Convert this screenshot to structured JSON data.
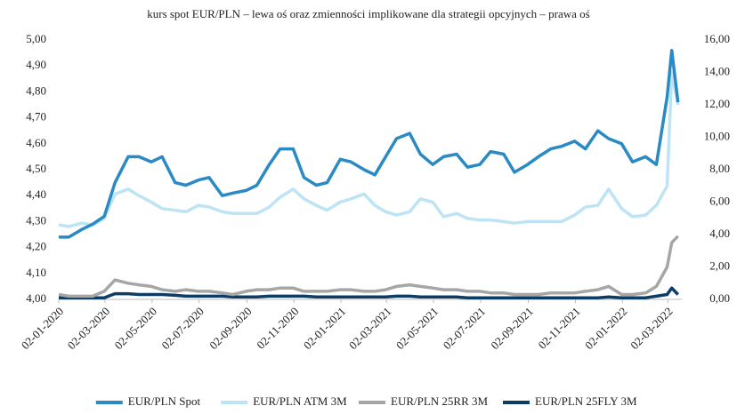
{
  "chart_data": {
    "type": "line",
    "title": "kurs spot EUR/PLN – lewa oś oraz zmienności implikowane dla strategii opcyjnych – prawa oś",
    "x": [
      "2020-01-02",
      "2020-01-15",
      "2020-02-01",
      "2020-02-15",
      "2020-03-01",
      "2020-03-15",
      "2020-04-01",
      "2020-04-15",
      "2020-05-01",
      "2020-05-15",
      "2020-06-01",
      "2020-06-15",
      "2020-07-01",
      "2020-07-15",
      "2020-08-01",
      "2020-08-15",
      "2020-09-01",
      "2020-09-15",
      "2020-10-01",
      "2020-10-15",
      "2020-11-01",
      "2020-11-15",
      "2020-12-01",
      "2020-12-15",
      "2021-01-01",
      "2021-01-15",
      "2021-02-01",
      "2021-02-15",
      "2021-03-01",
      "2021-03-15",
      "2021-04-01",
      "2021-04-15",
      "2021-05-01",
      "2021-05-15",
      "2021-06-01",
      "2021-06-15",
      "2021-07-01",
      "2021-07-15",
      "2021-08-01",
      "2021-08-15",
      "2021-09-01",
      "2021-09-15",
      "2021-10-01",
      "2021-10-15",
      "2021-11-01",
      "2021-11-15",
      "2021-12-01",
      "2021-12-15",
      "2022-01-01",
      "2022-01-15",
      "2022-02-01",
      "2022-02-15",
      "2022-03-01",
      "2022-03-07",
      "2022-03-15"
    ],
    "series": [
      {
        "name": "EUR/PLN Spot",
        "color": "#2a8ac4",
        "axis": "y",
        "values": [
          4.24,
          4.24,
          4.27,
          4.29,
          4.32,
          4.45,
          4.55,
          4.55,
          4.53,
          4.55,
          4.45,
          4.44,
          4.46,
          4.47,
          4.4,
          4.41,
          4.42,
          4.44,
          4.52,
          4.58,
          4.58,
          4.47,
          4.44,
          4.45,
          4.54,
          4.53,
          4.5,
          4.48,
          4.55,
          4.62,
          4.64,
          4.56,
          4.52,
          4.55,
          4.56,
          4.51,
          4.52,
          4.57,
          4.56,
          4.49,
          4.52,
          4.55,
          4.58,
          4.59,
          4.61,
          4.58,
          4.65,
          4.62,
          4.6,
          4.53,
          4.55,
          4.52,
          4.78,
          4.96,
          4.76
        ]
      },
      {
        "name": "EUR/PLN ATM 3M",
        "color": "#bde4f5",
        "axis": "y2",
        "values": [
          4.6,
          4.5,
          4.7,
          4.6,
          5.0,
          6.5,
          6.8,
          6.4,
          6.0,
          5.6,
          5.5,
          5.4,
          5.8,
          5.7,
          5.4,
          5.3,
          5.3,
          5.3,
          5.7,
          6.3,
          6.8,
          6.2,
          5.8,
          5.5,
          6.0,
          6.2,
          6.5,
          5.8,
          5.4,
          5.2,
          5.4,
          6.2,
          6.0,
          5.1,
          5.3,
          5.0,
          4.9,
          4.9,
          4.8,
          4.7,
          4.8,
          4.8,
          4.8,
          4.8,
          5.2,
          5.7,
          5.8,
          6.8,
          5.6,
          5.1,
          5.2,
          5.8,
          7.0,
          14.0,
          12.0
        ]
      },
      {
        "name": "EUR/PLN 25RR 3M",
        "color": "#a6a6a6",
        "axis": "y2",
        "values": [
          0.3,
          0.2,
          0.2,
          0.2,
          0.5,
          1.2,
          1.0,
          0.9,
          0.8,
          0.6,
          0.5,
          0.6,
          0.5,
          0.5,
          0.4,
          0.3,
          0.5,
          0.6,
          0.6,
          0.7,
          0.7,
          0.5,
          0.5,
          0.5,
          0.6,
          0.6,
          0.5,
          0.5,
          0.6,
          0.8,
          0.9,
          0.8,
          0.7,
          0.6,
          0.6,
          0.5,
          0.5,
          0.4,
          0.4,
          0.3,
          0.3,
          0.3,
          0.4,
          0.4,
          0.4,
          0.5,
          0.6,
          0.8,
          0.3,
          0.3,
          0.4,
          0.8,
          2.0,
          3.5,
          3.9
        ]
      },
      {
        "name": "EUR/PLN 25FLY 3M",
        "color": "#0d3d66",
        "axis": "y2",
        "values": [
          0.1,
          0.1,
          0.1,
          0.1,
          0.1,
          0.35,
          0.35,
          0.3,
          0.3,
          0.3,
          0.25,
          0.2,
          0.2,
          0.2,
          0.2,
          0.15,
          0.15,
          0.15,
          0.2,
          0.2,
          0.2,
          0.2,
          0.15,
          0.15,
          0.15,
          0.15,
          0.15,
          0.15,
          0.15,
          0.2,
          0.2,
          0.15,
          0.15,
          0.15,
          0.15,
          0.1,
          0.1,
          0.1,
          0.1,
          0.1,
          0.1,
          0.1,
          0.1,
          0.1,
          0.1,
          0.1,
          0.1,
          0.15,
          0.1,
          0.1,
          0.1,
          0.2,
          0.3,
          0.7,
          0.3
        ]
      }
    ],
    "xlim": [
      "2020-01-02",
      "2022-03-20"
    ],
    "xticks": [
      {
        "value": "2020-01-02",
        "label": "02-01-2020"
      },
      {
        "value": "2020-03-02",
        "label": "02-03-2020"
      },
      {
        "value": "2020-05-02",
        "label": "02-05-2020"
      },
      {
        "value": "2020-07-02",
        "label": "02-07-2020"
      },
      {
        "value": "2020-09-02",
        "label": "02-09-2020"
      },
      {
        "value": "2020-11-02",
        "label": "02-11-2020"
      },
      {
        "value": "2021-01-02",
        "label": "02-01-2021"
      },
      {
        "value": "2021-03-02",
        "label": "02-03-2021"
      },
      {
        "value": "2021-05-02",
        "label": "02-05-2021"
      },
      {
        "value": "2021-07-02",
        "label": "02-07-2021"
      },
      {
        "value": "2021-09-02",
        "label": "02-09-2021"
      },
      {
        "value": "2021-11-02",
        "label": "02-11-2021"
      },
      {
        "value": "2022-01-02",
        "label": "02-01-2022"
      },
      {
        "value": "2022-03-02",
        "label": "02-03-2022"
      }
    ],
    "ylim": [
      4.0,
      5.0
    ],
    "yticks": [
      {
        "value": 4.0,
        "label": "4,00"
      },
      {
        "value": 4.1,
        "label": "4,10"
      },
      {
        "value": 4.2,
        "label": "4,20"
      },
      {
        "value": 4.3,
        "label": "4,30"
      },
      {
        "value": 4.4,
        "label": "4,40"
      },
      {
        "value": 4.5,
        "label": "4,50"
      },
      {
        "value": 4.6,
        "label": "4,60"
      },
      {
        "value": 4.7,
        "label": "4,70"
      },
      {
        "value": 4.8,
        "label": "4,80"
      },
      {
        "value": 4.9,
        "label": "4,90"
      },
      {
        "value": 5.0,
        "label": "5,00"
      }
    ],
    "y2lim": [
      0,
      16
    ],
    "y2ticks": [
      {
        "value": 0,
        "label": "0,00"
      },
      {
        "value": 2,
        "label": "2,00"
      },
      {
        "value": 4,
        "label": "4,00"
      },
      {
        "value": 6,
        "label": "6,00"
      },
      {
        "value": 8,
        "label": "8,00"
      },
      {
        "value": 10,
        "label": "10,00"
      },
      {
        "value": 12,
        "label": "12,00"
      },
      {
        "value": 14,
        "label": "14,00"
      },
      {
        "value": 16,
        "label": "16,00"
      }
    ],
    "legend": "bottom"
  }
}
